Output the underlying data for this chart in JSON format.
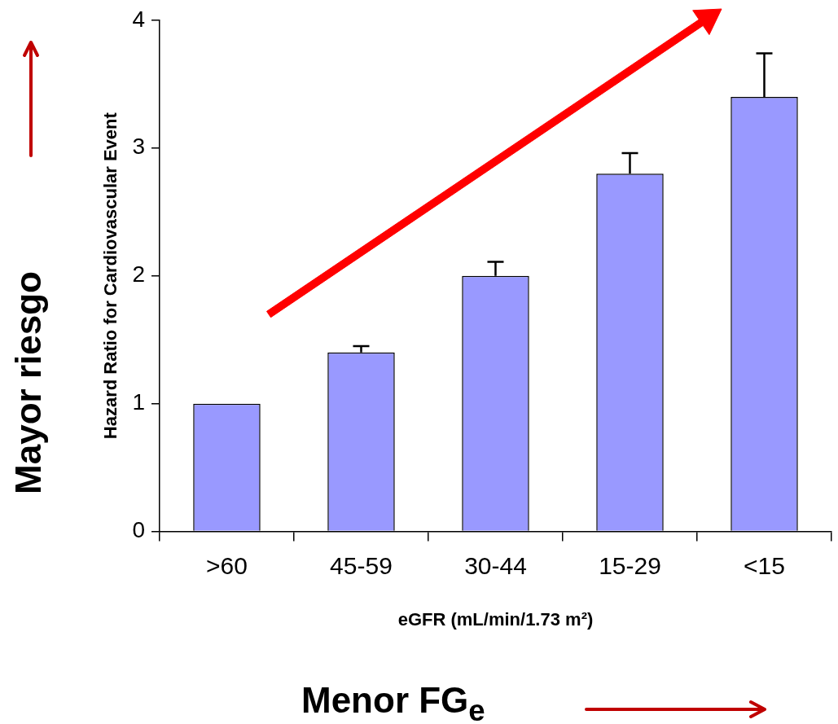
{
  "chart_data": {
    "type": "bar",
    "categories": [
      ">60",
      "45-59",
      "30-44",
      "15-29",
      "<15"
    ],
    "values": [
      1.0,
      1.4,
      2.0,
      2.8,
      3.4
    ],
    "errors": [
      null,
      [
        1.4,
        1.45
      ],
      [
        2.0,
        2.11
      ],
      [
        2.8,
        2.96
      ],
      [
        3.4,
        3.74
      ]
    ],
    "color": "#9999ff",
    "ylim": [
      0,
      4
    ],
    "yticks": [
      0,
      1,
      2,
      3,
      4
    ],
    "ylabel": "Hazard Ratio for Cardiovascular Event",
    "xlabel": "eGFR (mL/min/1.73 m²)",
    "grid": false,
    "legend": false,
    "annotations": [
      "Mayor riesgo",
      "Menor FG$_{e}$"
    ]
  }
}
